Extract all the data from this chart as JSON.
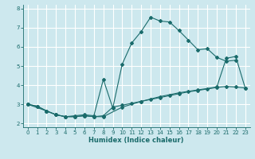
{
  "xlabel": "Humidex (Indice chaleur)",
  "bg_color": "#cde8ee",
  "grid_color": "#ffffff",
  "line_color": "#1a6b6b",
  "xlim": [
    -0.5,
    23.5
  ],
  "ylim": [
    1.8,
    8.2
  ],
  "xticks": [
    0,
    1,
    2,
    3,
    4,
    5,
    6,
    7,
    8,
    9,
    10,
    11,
    12,
    13,
    14,
    15,
    16,
    17,
    18,
    19,
    20,
    21,
    22,
    23
  ],
  "yticks": [
    2,
    3,
    4,
    5,
    6,
    7,
    8
  ],
  "curve1_x": [
    0,
    1,
    2,
    3,
    4,
    5,
    6,
    7,
    8,
    9,
    10,
    11,
    12,
    13,
    14,
    15,
    16,
    17,
    18,
    19,
    20,
    21,
    22
  ],
  "curve1_y": [
    3.0,
    2.9,
    2.65,
    2.45,
    2.35,
    2.4,
    2.45,
    2.4,
    4.3,
    2.8,
    5.1,
    6.2,
    6.8,
    7.55,
    7.35,
    7.3,
    6.85,
    6.35,
    5.85,
    5.9,
    5.45,
    5.25,
    5.3
  ],
  "curve2_x": [
    0,
    2,
    3,
    4,
    5,
    6,
    7,
    8,
    10,
    12,
    14,
    16,
    18,
    20,
    21,
    22,
    23
  ],
  "curve2_y": [
    3.0,
    2.65,
    2.45,
    2.35,
    2.35,
    2.4,
    2.35,
    2.35,
    2.85,
    3.15,
    3.4,
    3.6,
    3.75,
    3.9,
    5.4,
    5.5,
    3.85
  ],
  "curve3_x": [
    0,
    1,
    2,
    3,
    4,
    5,
    6,
    7,
    8,
    9,
    10,
    11,
    12,
    13,
    14,
    15,
    16,
    17,
    18,
    19,
    20,
    21,
    22,
    23
  ],
  "curve3_y": [
    3.0,
    2.9,
    2.65,
    2.45,
    2.35,
    2.35,
    2.4,
    2.35,
    2.4,
    2.85,
    2.95,
    3.05,
    3.15,
    3.25,
    3.35,
    3.45,
    3.55,
    3.65,
    3.72,
    3.8,
    3.88,
    3.93,
    3.9,
    3.85
  ]
}
